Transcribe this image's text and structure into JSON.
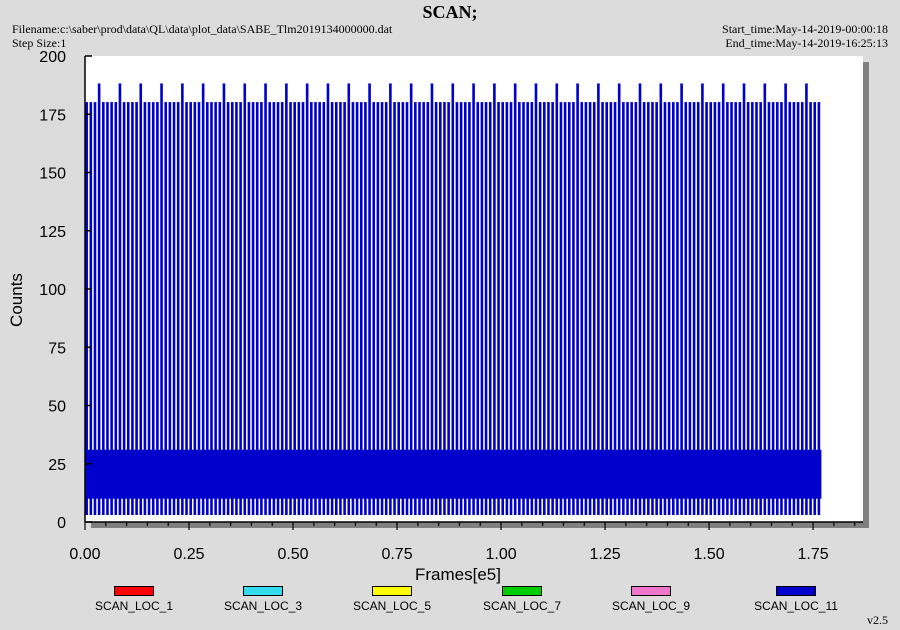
{
  "header": {
    "title": "SCAN;",
    "filename": "Filename:c:\\saber\\prod\\data\\QL\\data\\plot_data\\SABE_Tlm2019134000000.dat",
    "step_size": "Step Size:1",
    "start_time": "Start_time:May-14-2019-00:00:18",
    "end_time": "End_time:May-14-2019-16:25:13"
  },
  "version": "v2.5",
  "colors": {
    "background": "#dcdcdc",
    "plot_background": "#ffffff",
    "shadow": "#808080",
    "series_main": "#0000cc"
  },
  "chart_data": {
    "type": "line",
    "title": "SCAN;",
    "xlabel": "Frames[e5]",
    "ylabel": "Counts",
    "xlim": [
      0,
      1.87
    ],
    "ylim": [
      0,
      200
    ],
    "x_ticks": [
      "0.00",
      "0.25",
      "0.50",
      "0.75",
      "1.00",
      "1.25",
      "1.50",
      "1.75"
    ],
    "y_ticks": [
      "0",
      "25",
      "50",
      "75",
      "100",
      "125",
      "150",
      "175",
      "200"
    ],
    "grid": false,
    "legend_position": "bottom",
    "series": [
      {
        "name": "SCAN_LOC_1",
        "color": "#ff0000",
        "values": []
      },
      {
        "name": "SCAN_LOC_3",
        "color": "#33ddee",
        "values": []
      },
      {
        "name": "SCAN_LOC_5",
        "color": "#ffff00",
        "values": []
      },
      {
        "name": "SCAN_LOC_7",
        "color": "#00cc00",
        "values": []
      },
      {
        "name": "SCAN_LOC_9",
        "color": "#ee77cc",
        "values": []
      },
      {
        "name": "SCAN_LOC_11",
        "color": "#0000cc",
        "pattern": {
          "x_range": [
            0.0,
            1.77
          ],
          "band_low": 10,
          "band_high": 31,
          "spike_peak": 180,
          "tall_spike_peak": 188,
          "spike_spacing": 0.01,
          "spike_min": 3
        }
      }
    ]
  }
}
